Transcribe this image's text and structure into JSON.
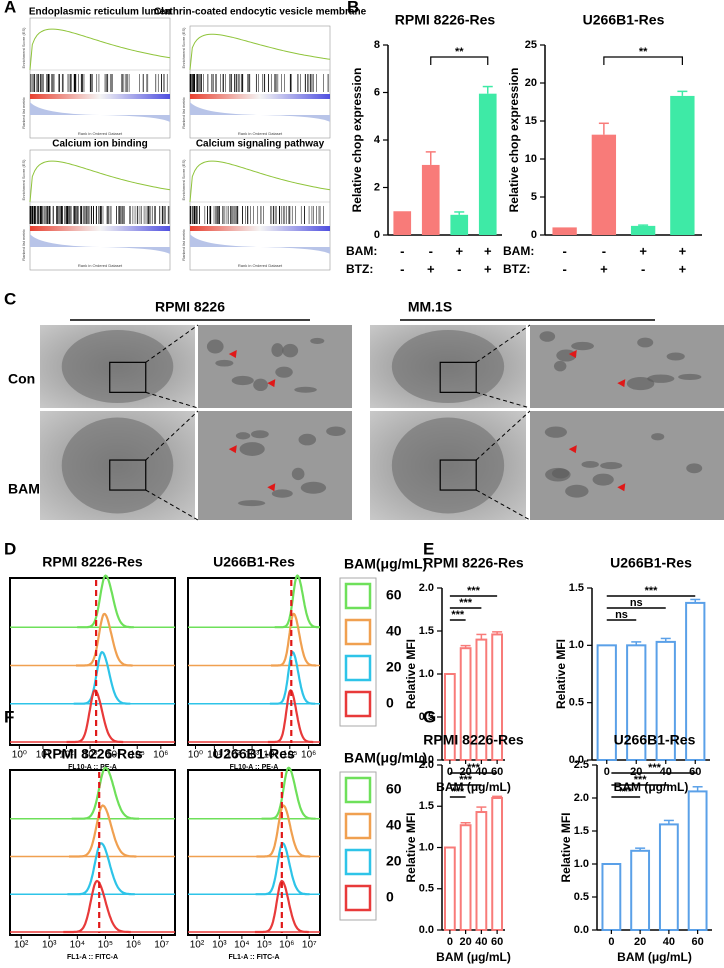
{
  "panel_labels": [
    "A",
    "B",
    "C",
    "D",
    "E",
    "F",
    "G"
  ],
  "gsea": {
    "titles": [
      "Endoplasmic reticulum lumen",
      "Clathrin-coated endocytic vesicle membrane",
      "Calcium ion binding",
      "Calcium signaling pathway"
    ],
    "ylabel_top": "Enrichment Score (ES)",
    "ylabel_bottom": "Ranked list metric",
    "xlabel": "Rank in Ordered Dataset"
  },
  "em": {
    "titles": [
      "RPMI 8226",
      "MM.1S"
    ],
    "rows": [
      "Con",
      "BAM"
    ]
  },
  "chart_data": [
    {
      "type": "bar",
      "title": "RPMI 8226-Res",
      "ylabel": "Relative chop expression",
      "ylim": [
        0,
        8
      ],
      "yticks": [
        0,
        2,
        4,
        6,
        8
      ],
      "values": [
        1,
        2.95,
        0.85,
        5.95
      ],
      "errors": [
        0,
        0.55,
        0.12,
        0.3
      ],
      "colors": [
        "#f87b79",
        "#f87b79",
        "#3eeaa6",
        "#3eeaa6"
      ],
      "filled": true,
      "conditions": [
        {
          "name": "BAM:",
          "values": [
            "-",
            "-",
            "+",
            "+"
          ]
        },
        {
          "name": "BTZ:",
          "values": [
            "-",
            "+",
            "-",
            "+"
          ]
        }
      ],
      "significance": [
        {
          "pair": [
            1,
            3
          ],
          "label": "**"
        }
      ]
    },
    {
      "type": "bar",
      "title": "U266B1-Res",
      "ylabel": "Relative chop expression",
      "ylim": [
        0,
        25
      ],
      "yticks": [
        0,
        5,
        10,
        15,
        20,
        25
      ],
      "values": [
        1,
        13.2,
        1.2,
        18.3
      ],
      "errors": [
        0,
        1.5,
        0.1,
        0.6
      ],
      "colors": [
        "#f87b79",
        "#f87b79",
        "#3eeaa6",
        "#3eeaa6"
      ],
      "filled": true,
      "conditions": [
        {
          "name": "BAM:",
          "values": [
            "-",
            "-",
            "+",
            "+"
          ]
        },
        {
          "name": "BTZ:",
          "values": [
            "-",
            "+",
            "-",
            "+"
          ]
        }
      ],
      "significance": [
        {
          "pair": [
            1,
            3
          ],
          "label": "**"
        }
      ]
    },
    {
      "type": "density",
      "title": "RPMI 8226-Res",
      "xlabel": "FL10-A :: PE-A",
      "xscale": "log",
      "xlim": [
        0.4,
        4000000
      ],
      "xticks": [
        {
          "value": 1,
          "label": "10⁰"
        },
        {
          "value": 10,
          "label": "10¹"
        },
        {
          "value": 100,
          "label": "10²"
        },
        {
          "value": 1000,
          "label": "10³"
        },
        {
          "value": 10000,
          "label": "10⁴"
        },
        {
          "value": 100000,
          "label": "10⁵"
        },
        {
          "value": 1000000,
          "label": "10⁶"
        }
      ],
      "marker": 1800,
      "legend_title": "BAM(μg/mL)",
      "series": [
        {
          "name": "60",
          "color": "#6ee05a",
          "peak": 4500
        },
        {
          "name": "40",
          "color": "#f0a050",
          "peak": 4000
        },
        {
          "name": "20",
          "color": "#2ec4e8",
          "peak": 3200
        },
        {
          "name": "0",
          "color": "#e83a3a",
          "peak": 1600
        }
      ]
    },
    {
      "type": "density",
      "title": "U266B1-Res",
      "xlabel": "FL10-A :: PE-A",
      "xscale": "log",
      "xlim": [
        0.4,
        4000000
      ],
      "xticks": [
        {
          "value": 1,
          "label": "10⁰"
        },
        {
          "value": 10,
          "label": "10¹"
        },
        {
          "value": 100,
          "label": "10²"
        },
        {
          "value": 1000,
          "label": "10³"
        },
        {
          "value": 10000,
          "label": "10⁴"
        },
        {
          "value": 100000,
          "label": "10⁵"
        },
        {
          "value": 1000000,
          "label": "10⁶"
        }
      ],
      "marker": 120000,
      "series": [
        {
          "color": "#6ee05a",
          "peak": 250000
        },
        {
          "color": "#f0a050",
          "peak": 160000
        },
        {
          "color": "#2ec4e8",
          "peak": 140000
        },
        {
          "color": "#e83a3a",
          "peak": 110000
        }
      ]
    },
    {
      "type": "bar",
      "title": "RPMI 8226-Res",
      "ylabel": "Relative MFI",
      "xlabel": "BAM (μg/mL)",
      "categories": [
        "0",
        "20",
        "40",
        "60"
      ],
      "ylim": [
        0,
        2
      ],
      "yticks": [
        {
          "value": 0,
          "label": "0.0"
        },
        {
          "value": 0.5,
          "label": "0.5"
        },
        {
          "value": 1,
          "label": "1.0"
        },
        {
          "value": 1.5,
          "label": "1.5"
        },
        {
          "value": 2,
          "label": "2.0"
        }
      ],
      "values": [
        1,
        1.3,
        1.4,
        1.46
      ],
      "errors": [
        0,
        0.03,
        0.06,
        0.03
      ],
      "color": "#f87b79",
      "filled": false,
      "significance": [
        {
          "pair": [
            0,
            1
          ],
          "label": "***"
        },
        {
          "pair": [
            0,
            2
          ],
          "label": "***"
        },
        {
          "pair": [
            0,
            3
          ],
          "label": "***"
        }
      ]
    },
    {
      "type": "bar",
      "title": "U266B1-Res",
      "ylabel": "Relative MFI",
      "xlabel": "BAM (μg/mL)",
      "categories": [
        "0",
        "20",
        "40",
        "60"
      ],
      "ylim": [
        0,
        1.5
      ],
      "yticks": [
        {
          "value": 0,
          "label": "0.0"
        },
        {
          "value": 0.5,
          "label": "0.5"
        },
        {
          "value": 1,
          "label": "1.0"
        },
        {
          "value": 1.5,
          "label": "1.5"
        }
      ],
      "values": [
        1,
        1.0,
        1.03,
        1.37
      ],
      "errors": [
        0,
        0.03,
        0.03,
        0.03
      ],
      "color": "#5aa0e8",
      "filled": false,
      "significance": [
        {
          "pair": [
            0,
            1
          ],
          "label": "ns"
        },
        {
          "pair": [
            0,
            2
          ],
          "label": "ns"
        },
        {
          "pair": [
            0,
            3
          ],
          "label": "***"
        }
      ]
    },
    {
      "type": "density",
      "title": "RPMI 8226-Res",
      "xlabel": "FL1-A :: FITC-A",
      "xscale": "log",
      "xlim": [
        40,
        30000000
      ],
      "xticks": [
        {
          "value": 100,
          "label": "10²"
        },
        {
          "value": 1000,
          "label": "10³"
        },
        {
          "value": 10000,
          "label": "10⁴"
        },
        {
          "value": 100000,
          "label": "10⁵"
        },
        {
          "value": 1000000,
          "label": "10⁶"
        },
        {
          "value": 10000000,
          "label": "10⁷"
        }
      ],
      "marker": 60000,
      "legend_title": "BAM(μg/mL)",
      "series": [
        {
          "name": "60",
          "color": "#6ee05a",
          "peak": 100000
        },
        {
          "name": "40",
          "color": "#f0a050",
          "peak": 80000
        },
        {
          "name": "20",
          "color": "#2ec4e8",
          "peak": 70000
        },
        {
          "name": "0",
          "color": "#e83a3a",
          "peak": 50000
        }
      ]
    },
    {
      "type": "density",
      "title": "U266B1-Res",
      "xlabel": "FL1-A :: FITC-A",
      "xscale": "log",
      "xlim": [
        40,
        30000000
      ],
      "xticks": [
        {
          "value": 100,
          "label": "10²"
        },
        {
          "value": 1000,
          "label": "10³"
        },
        {
          "value": 10000,
          "label": "10⁴"
        },
        {
          "value": 100000,
          "label": "10⁵"
        },
        {
          "value": 1000000,
          "label": "10⁶"
        },
        {
          "value": 10000000,
          "label": "10⁷"
        }
      ],
      "marker": 600000,
      "series": [
        {
          "color": "#6ee05a",
          "peak": 1200000
        },
        {
          "color": "#f0a050",
          "peak": 700000
        },
        {
          "color": "#2ec4e8",
          "peak": 650000
        },
        {
          "color": "#e83a3a",
          "peak": 600000
        }
      ]
    },
    {
      "type": "bar",
      "title": "RPMI 8226-Res",
      "ylabel": "Relative MFI",
      "xlabel": "BAM (μg/mL)",
      "categories": [
        "0",
        "20",
        "40",
        "60"
      ],
      "ylim": [
        0,
        2
      ],
      "yticks": [
        {
          "value": 0,
          "label": "0.0"
        },
        {
          "value": 0.5,
          "label": "0.5"
        },
        {
          "value": 1,
          "label": "1.0"
        },
        {
          "value": 1.5,
          "label": "1.5"
        },
        {
          "value": 2,
          "label": "2.0"
        }
      ],
      "values": [
        1,
        1.27,
        1.43,
        1.6
      ],
      "errors": [
        0,
        0.03,
        0.06,
        0.02
      ],
      "color": "#f87b79",
      "filled": false,
      "significance": [
        {
          "pair": [
            0,
            1
          ],
          "label": "***"
        },
        {
          "pair": [
            0,
            2
          ],
          "label": "***"
        },
        {
          "pair": [
            0,
            3
          ],
          "label": "***"
        }
      ]
    },
    {
      "type": "bar",
      "title": "U266B1-Res",
      "ylabel": "Relative MFI",
      "xlabel": "BAM (μg/mL)",
      "categories": [
        "0",
        "20",
        "40",
        "60"
      ],
      "ylim": [
        0,
        2.5
      ],
      "yticks": [
        {
          "value": 0,
          "label": "0.0"
        },
        {
          "value": 0.5,
          "label": "0.5"
        },
        {
          "value": 1,
          "label": "1.0"
        },
        {
          "value": 1.5,
          "label": "1.5"
        },
        {
          "value": 2,
          "label": "2.0"
        },
        {
          "value": 2.5,
          "label": "2.5"
        }
      ],
      "values": [
        1,
        1.2,
        1.6,
        2.1
      ],
      "errors": [
        0,
        0.04,
        0.06,
        0.07
      ],
      "color": "#5aa0e8",
      "filled": false,
      "significance": [
        {
          "pair": [
            0,
            1
          ],
          "label": "***"
        },
        {
          "pair": [
            0,
            2
          ],
          "label": "***"
        },
        {
          "pair": [
            0,
            3
          ],
          "label": "***"
        }
      ]
    }
  ]
}
